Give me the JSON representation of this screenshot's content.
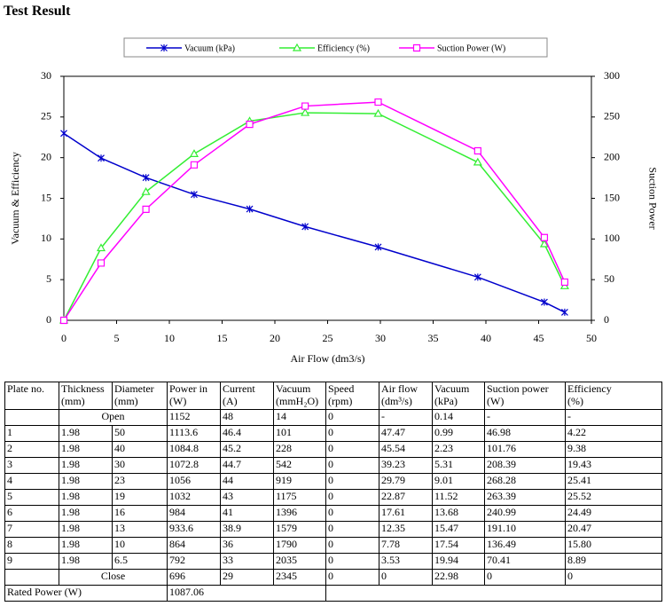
{
  "header": {
    "title": "Test Result"
  },
  "chart_data": {
    "type": "line",
    "x_label": "Air Flow (dm3/s)",
    "y_label": "Vacuum & Efficiency",
    "y2_label": "Suction Power",
    "x": [
      0,
      3.53,
      7.78,
      12.35,
      17.61,
      22.87,
      29.79,
      39.23,
      45.54,
      47.47
    ],
    "series": [
      {
        "name": "Vacuum (kPa)",
        "color": "#0000cc",
        "marker": "star",
        "values": [
          22.98,
          19.94,
          17.54,
          15.47,
          13.68,
          11.52,
          9.01,
          5.31,
          2.23,
          0.99
        ]
      },
      {
        "name": "Efficiency (%)",
        "color": "#33ee33",
        "marker": "triangle",
        "values": [
          0,
          8.89,
          15.8,
          20.47,
          24.49,
          25.52,
          25.41,
          19.43,
          9.38,
          4.22
        ]
      },
      {
        "name": "Suction Power (W)",
        "color": "#ff00ff",
        "marker": "square",
        "axis": "y2",
        "values": [
          0,
          70.41,
          136.49,
          191.1,
          240.99,
          263.39,
          268.28,
          208.39,
          101.76,
          46.98
        ]
      }
    ],
    "xlim": [
      0,
      50
    ],
    "xticks": [
      0,
      5,
      10,
      15,
      20,
      25,
      30,
      35,
      40,
      45,
      50
    ],
    "ylim": [
      0,
      30
    ],
    "yticks": [
      0,
      5,
      10,
      15,
      20,
      25,
      30
    ],
    "y2lim": [
      0,
      300
    ],
    "y2ticks": [
      0,
      50,
      100,
      150,
      200,
      250,
      300
    ],
    "legend": "top"
  },
  "table": {
    "headers": [
      {
        "name": "Plate no."
      },
      {
        "name": "Thickness",
        "unit": "(mm)"
      },
      {
        "name": "Diameter",
        "unit": "(mm)"
      },
      {
        "name": "Power in",
        "unit": "(W)"
      },
      {
        "name": "Current",
        "unit": "(A)"
      },
      {
        "name": "Vacuum",
        "unit": "(mmH₂O)"
      },
      {
        "name": "Speed",
        "unit": "(rpm)"
      },
      {
        "name": "Air flow",
        "unit": "(dm³/s)"
      },
      {
        "name": "Vacuum",
        "unit": "(kPa)"
      },
      {
        "name": "Suction power",
        "unit": "(W)"
      },
      {
        "name": "Efficiency",
        "unit": "(%)"
      }
    ],
    "open": {
      "label": "Open",
      "values": [
        "1152",
        "48",
        "14",
        "0",
        "-",
        "0.14",
        "-",
        "-"
      ]
    },
    "rows": [
      [
        "1",
        "1.98",
        "50",
        "1113.6",
        "46.4",
        "101",
        "0",
        "47.47",
        "0.99",
        "46.98",
        "4.22"
      ],
      [
        "2",
        "1.98",
        "40",
        "1084.8",
        "45.2",
        "228",
        "0",
        "45.54",
        "2.23",
        "101.76",
        "9.38"
      ],
      [
        "3",
        "1.98",
        "30",
        "1072.8",
        "44.7",
        "542",
        "0",
        "39.23",
        "5.31",
        "208.39",
        "19.43"
      ],
      [
        "4",
        "1.98",
        "23",
        "1056",
        "44",
        "919",
        "0",
        "29.79",
        "9.01",
        "268.28",
        "25.41"
      ],
      [
        "5",
        "1.98",
        "19",
        "1032",
        "43",
        "1175",
        "0",
        "22.87",
        "11.52",
        "263.39",
        "25.52"
      ],
      [
        "6",
        "1.98",
        "16",
        "984",
        "41",
        "1396",
        "0",
        "17.61",
        "13.68",
        "240.99",
        "24.49"
      ],
      [
        "7",
        "1.98",
        "13",
        "933.6",
        "38.9",
        "1579",
        "0",
        "12.35",
        "15.47",
        "191.10",
        "20.47"
      ],
      [
        "8",
        "1.98",
        "10",
        "864",
        "36",
        "1790",
        "0",
        "7.78",
        "17.54",
        "136.49",
        "15.80"
      ],
      [
        "9",
        "1.98",
        "6.5",
        "792",
        "33",
        "2035",
        "0",
        "3.53",
        "19.94",
        "70.41",
        "8.89"
      ]
    ],
    "close": {
      "label": "Close",
      "values": [
        "696",
        "29",
        "2345",
        "0",
        "0",
        "22.98",
        "0",
        "0"
      ]
    },
    "rated_power": {
      "label": "Rated Power (W)",
      "value": "1087.06"
    }
  }
}
